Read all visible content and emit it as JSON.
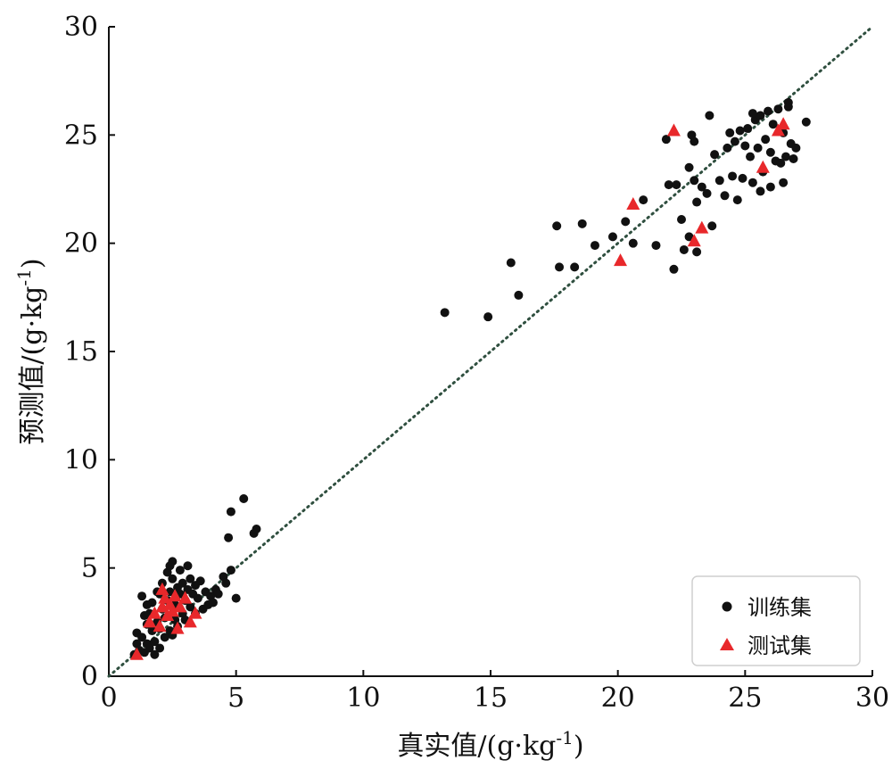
{
  "chart_data": {
    "type": "scatter",
    "xlabel": "真实值/(g·kg",
    "xlabel_sup": "-1",
    "xlabel_end": ")",
    "ylabel": "预测值/(g·kg",
    "ylabel_sup": "-1",
    "ylabel_end": ")",
    "xlim": [
      0,
      30
    ],
    "ylim": [
      0,
      30
    ],
    "xticks": [
      0,
      5,
      10,
      15,
      20,
      25,
      30
    ],
    "yticks": [
      0,
      5,
      10,
      15,
      20,
      25,
      30
    ],
    "grid": false,
    "legend_position": "bottom-right",
    "reference_line": {
      "style": "dotted",
      "from": [
        0,
        0
      ],
      "to": [
        30,
        30
      ],
      "color": "#2f4f3f"
    },
    "series": [
      {
        "name": "训练集",
        "marker": "circle",
        "color": "#111111",
        "points": [
          [
            1.0,
            1.0
          ],
          [
            1.1,
            1.5
          ],
          [
            1.1,
            2.0
          ],
          [
            1.2,
            1.2
          ],
          [
            1.3,
            1.8
          ],
          [
            1.3,
            3.7
          ],
          [
            1.4,
            1.1
          ],
          [
            1.4,
            2.8
          ],
          [
            1.5,
            1.5
          ],
          [
            1.5,
            2.4
          ],
          [
            1.6,
            1.3
          ],
          [
            1.6,
            2.9
          ],
          [
            1.7,
            2.1
          ],
          [
            1.7,
            3.4
          ],
          [
            1.8,
            1.0
          ],
          [
            1.8,
            1.6
          ],
          [
            1.9,
            2.5
          ],
          [
            1.9,
            3.9
          ],
          [
            2.0,
            1.3
          ],
          [
            2.0,
            2.2
          ],
          [
            2.1,
            3.1
          ],
          [
            2.1,
            4.3
          ],
          [
            2.2,
            1.8
          ],
          [
            2.2,
            2.7
          ],
          [
            2.3,
            3.5
          ],
          [
            2.3,
            4.8
          ],
          [
            2.4,
            2.1
          ],
          [
            2.4,
            3.9
          ],
          [
            2.5,
            1.9
          ],
          [
            2.5,
            4.5
          ],
          [
            2.5,
            5.3
          ],
          [
            2.6,
            2.6
          ],
          [
            2.6,
            3.3
          ],
          [
            2.7,
            4.1
          ],
          [
            2.7,
            2.3
          ],
          [
            2.8,
            3.8
          ],
          [
            2.8,
            4.9
          ],
          [
            2.9,
            2.9
          ],
          [
            2.9,
            4.3
          ],
          [
            3.0,
            3.5
          ],
          [
            3.0,
            2.6
          ],
          [
            3.1,
            4.0
          ],
          [
            3.1,
            5.1
          ],
          [
            3.2,
            3.2
          ],
          [
            3.2,
            4.5
          ],
          [
            3.3,
            3.8
          ],
          [
            3.4,
            2.9
          ],
          [
            3.4,
            4.2
          ],
          [
            3.5,
            3.6
          ],
          [
            3.6,
            4.4
          ],
          [
            3.7,
            3.1
          ],
          [
            3.8,
            3.9
          ],
          [
            3.9,
            3.3
          ],
          [
            4.0,
            3.7
          ],
          [
            4.1,
            3.4
          ],
          [
            4.2,
            4.0
          ],
          [
            4.3,
            3.8
          ],
          [
            4.5,
            4.6
          ],
          [
            4.6,
            4.3
          ],
          [
            4.7,
            6.4
          ],
          [
            4.8,
            4.9
          ],
          [
            4.8,
            7.6
          ],
          [
            5.0,
            3.6
          ],
          [
            5.3,
            8.2
          ],
          [
            5.7,
            6.6
          ],
          [
            5.8,
            6.8
          ],
          [
            2.0,
            3.8
          ],
          [
            2.4,
            5.1
          ],
          [
            1.5,
            3.3
          ],
          [
            13.2,
            16.8
          ],
          [
            14.9,
            16.6
          ],
          [
            15.8,
            19.1
          ],
          [
            16.1,
            17.6
          ],
          [
            17.6,
            20.8
          ],
          [
            17.7,
            18.9
          ],
          [
            18.3,
            18.9
          ],
          [
            18.6,
            20.9
          ],
          [
            19.1,
            19.9
          ],
          [
            19.8,
            20.3
          ],
          [
            20.3,
            21.0
          ],
          [
            20.6,
            20.0
          ],
          [
            21.0,
            22.0
          ],
          [
            21.5,
            19.9
          ],
          [
            21.9,
            24.8
          ],
          [
            22.0,
            22.7
          ],
          [
            22.2,
            18.8
          ],
          [
            22.3,
            22.7
          ],
          [
            22.5,
            21.1
          ],
          [
            22.6,
            19.7
          ],
          [
            22.8,
            20.3
          ],
          [
            22.8,
            23.5
          ],
          [
            22.9,
            25.0
          ],
          [
            23.0,
            22.9
          ],
          [
            23.0,
            24.7
          ],
          [
            23.1,
            21.9
          ],
          [
            23.1,
            19.6
          ],
          [
            23.3,
            22.6
          ],
          [
            23.5,
            22.3
          ],
          [
            23.6,
            25.9
          ],
          [
            23.7,
            20.8
          ],
          [
            23.8,
            24.1
          ],
          [
            24.0,
            22.9
          ],
          [
            24.2,
            22.2
          ],
          [
            24.3,
            24.4
          ],
          [
            24.5,
            23.1
          ],
          [
            24.6,
            24.7
          ],
          [
            24.7,
            22.0
          ],
          [
            24.8,
            25.2
          ],
          [
            24.9,
            23.0
          ],
          [
            25.0,
            24.5
          ],
          [
            25.1,
            25.3
          ],
          [
            25.2,
            24.0
          ],
          [
            25.3,
            22.8
          ],
          [
            25.4,
            25.7
          ],
          [
            25.5,
            24.4
          ],
          [
            25.6,
            22.4
          ],
          [
            25.6,
            25.9
          ],
          [
            25.7,
            23.3
          ],
          [
            25.8,
            24.8
          ],
          [
            25.9,
            26.1
          ],
          [
            26.0,
            22.6
          ],
          [
            26.0,
            24.2
          ],
          [
            26.1,
            25.5
          ],
          [
            26.2,
            23.8
          ],
          [
            26.3,
            26.2
          ],
          [
            26.4,
            23.7
          ],
          [
            26.5,
            25.1
          ],
          [
            26.5,
            22.8
          ],
          [
            26.6,
            24.0
          ],
          [
            26.7,
            26.5
          ],
          [
            26.8,
            24.6
          ],
          [
            26.9,
            23.9
          ],
          [
            27.0,
            24.4
          ],
          [
            27.4,
            25.6
          ],
          [
            26.7,
            26.3
          ],
          [
            25.3,
            26.0
          ],
          [
            24.4,
            25.1
          ]
        ]
      },
      {
        "name": "测试集",
        "marker": "triangle",
        "color": "#e8282b",
        "points": [
          [
            1.1,
            1.0
          ],
          [
            1.6,
            2.5
          ],
          [
            1.8,
            2.9
          ],
          [
            2.0,
            2.3
          ],
          [
            2.1,
            4.0
          ],
          [
            2.1,
            3.2
          ],
          [
            2.2,
            3.6
          ],
          [
            2.3,
            2.8
          ],
          [
            2.4,
            3.3
          ],
          [
            2.5,
            3.0
          ],
          [
            2.6,
            3.7
          ],
          [
            2.7,
            2.2
          ],
          [
            2.8,
            3.2
          ],
          [
            3.0,
            3.6
          ],
          [
            3.2,
            2.5
          ],
          [
            3.4,
            2.9
          ],
          [
            20.1,
            19.2
          ],
          [
            20.6,
            21.8
          ],
          [
            22.2,
            25.2
          ],
          [
            23.0,
            20.1
          ],
          [
            23.3,
            20.7
          ],
          [
            25.7,
            23.5
          ],
          [
            26.3,
            25.2
          ],
          [
            26.5,
            25.5
          ]
        ]
      }
    ]
  }
}
